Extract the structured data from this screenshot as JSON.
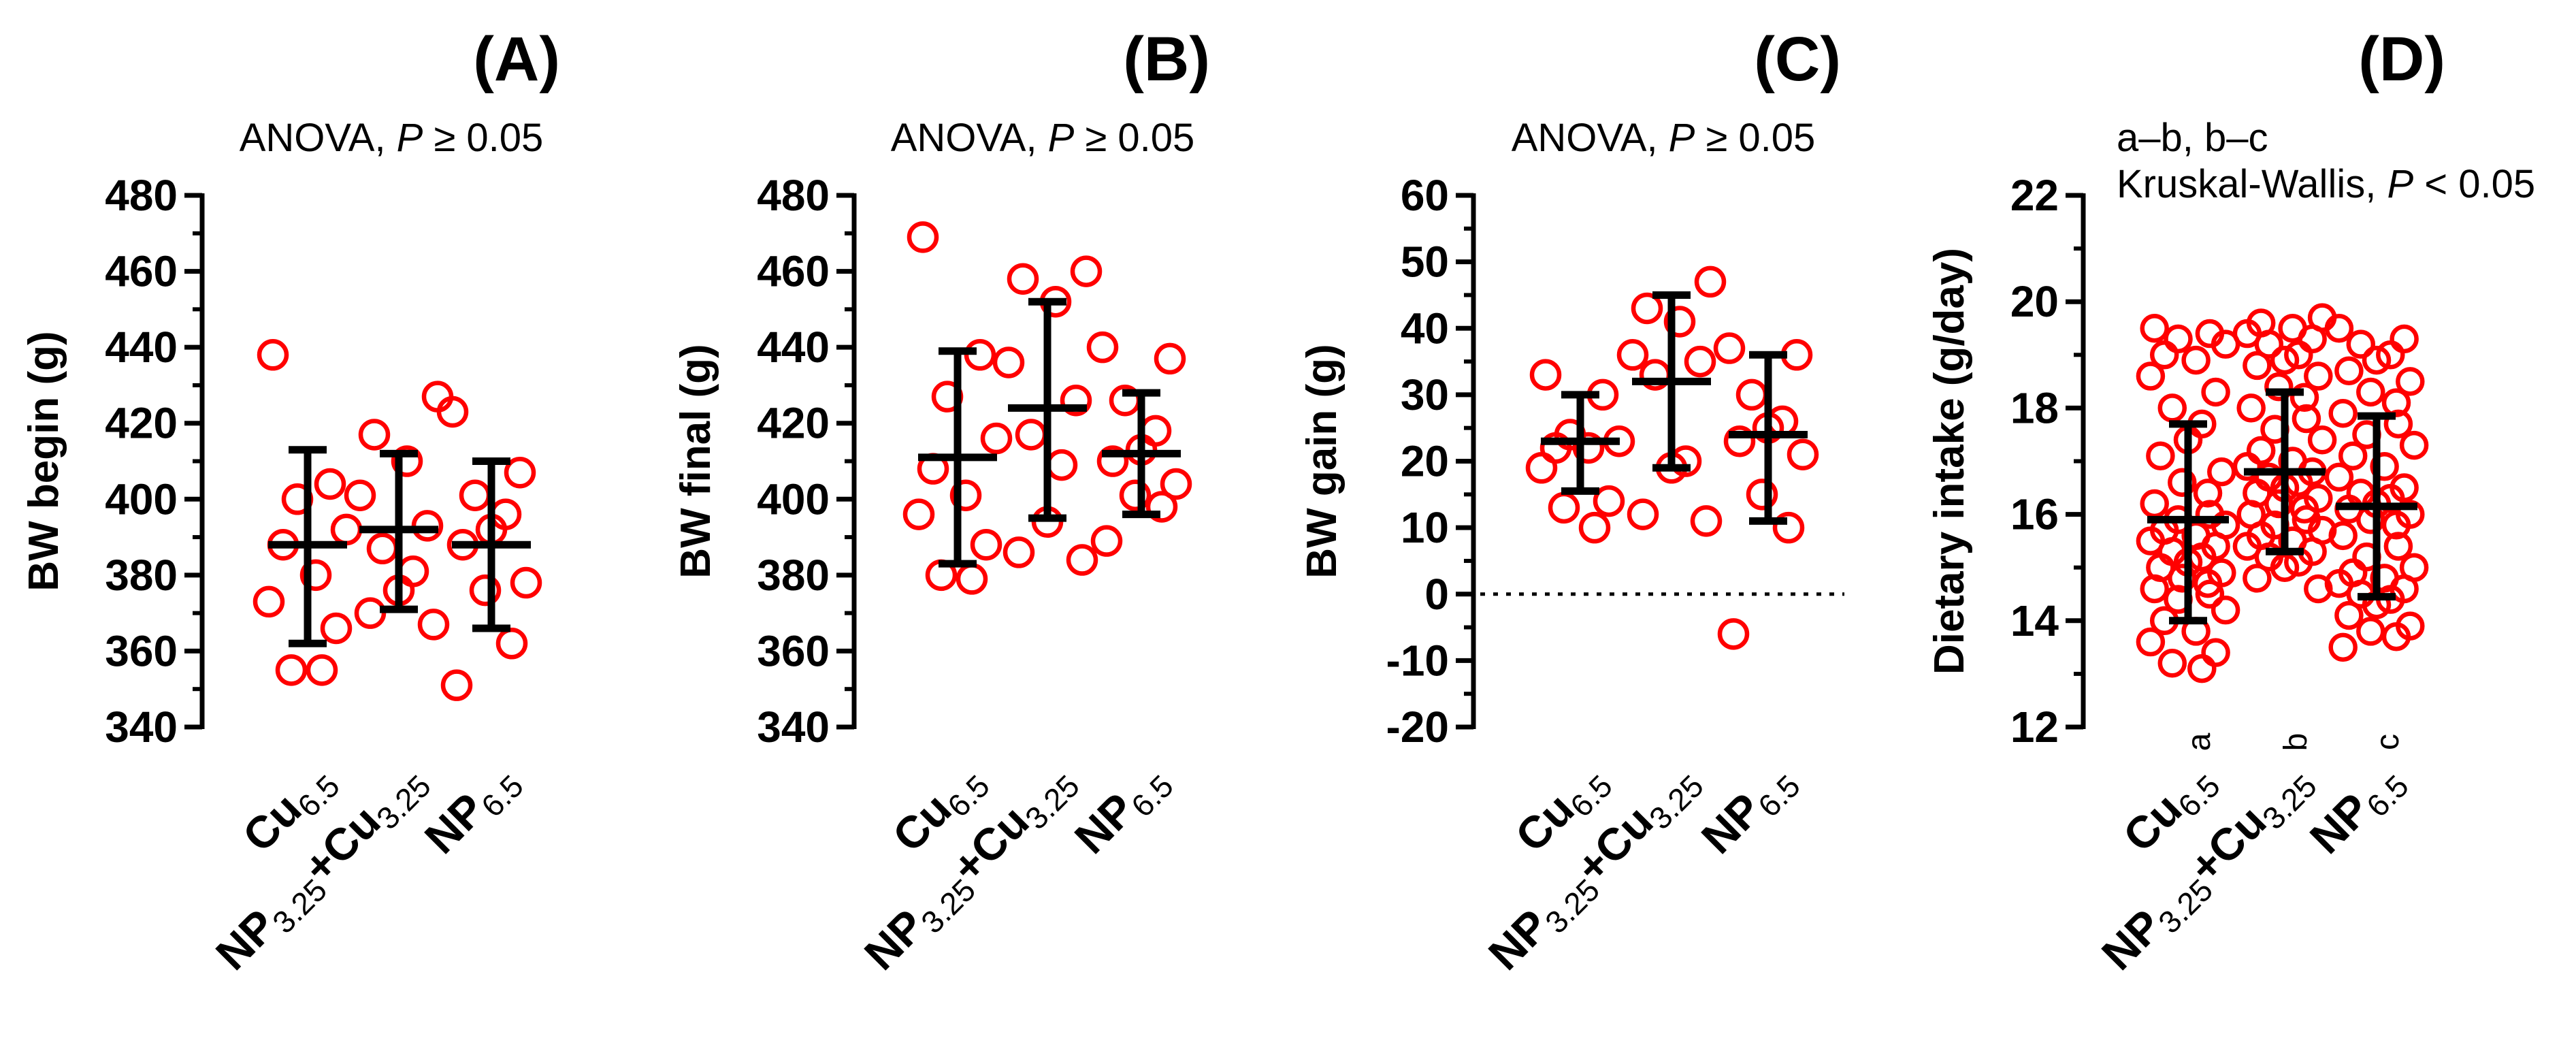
{
  "colors": {
    "points": "#ff0000",
    "axes": "#000000"
  },
  "chart_data": [
    {
      "type": "scatter",
      "panel": "(A)",
      "title": "(A)",
      "stat_parts": [
        "ANOVA, ",
        "P",
        " ≥ 0.05"
      ],
      "ylabel": "BW begin (g)",
      "ylim": [
        340,
        480
      ],
      "yticks": [
        340,
        360,
        380,
        400,
        420,
        440,
        460,
        480
      ],
      "yminor": [
        350,
        370,
        390,
        410,
        430,
        450,
        470
      ],
      "categories": [
        {
          "main": "Cu",
          "sub": "6.5"
        },
        {
          "main": "NP",
          "sub": "3.25",
          "main2": "+Cu",
          "sub2": "3.25"
        },
        {
          "main": "NP",
          "sub": "6.5"
        }
      ],
      "series": [
        {
          "name": "Cu6.5",
          "mean": 388,
          "error_low": 362,
          "error_high": 413,
          "points": [
            438,
            404,
            400,
            392,
            388,
            380,
            373,
            366,
            355,
            355
          ]
        },
        {
          "name": "NP3.25+Cu3.25",
          "mean": 392,
          "error_low": 371,
          "error_high": 412,
          "points": [
            427,
            417,
            410,
            401,
            393,
            387,
            381,
            376,
            370,
            367
          ]
        },
        {
          "name": "NP6.5",
          "mean": 388,
          "error_low": 366,
          "error_high": 410,
          "points": [
            423,
            407,
            401,
            396,
            392,
            388,
            378,
            376,
            362,
            351
          ]
        }
      ]
    },
    {
      "type": "scatter",
      "panel": "(B)",
      "title": "(B)",
      "stat_parts": [
        "ANOVA, ",
        "P",
        " ≥ 0.05"
      ],
      "ylabel": "BW final (g)",
      "ylim": [
        340,
        480
      ],
      "yticks": [
        340,
        360,
        380,
        400,
        420,
        440,
        460,
        480
      ],
      "yminor": [
        350,
        370,
        390,
        410,
        430,
        450,
        470
      ],
      "categories": [
        {
          "main": "Cu",
          "sub": "6.5"
        },
        {
          "main": "NP",
          "sub": "3.25",
          "main2": "+Cu",
          "sub2": "3.25"
        },
        {
          "main": "NP",
          "sub": "6.5"
        }
      ],
      "series": [
        {
          "name": "Cu6.5",
          "mean": 411,
          "error_low": 383,
          "error_high": 439,
          "points": [
            469,
            438,
            427,
            416,
            408,
            401,
            396,
            388,
            380,
            379
          ]
        },
        {
          "name": "NP3.25+Cu3.25",
          "mean": 424,
          "error_low": 395,
          "error_high": 452,
          "points": [
            460,
            458,
            452,
            436,
            426,
            417,
            409,
            394,
            386,
            384
          ]
        },
        {
          "name": "NP6.5",
          "mean": 412,
          "error_low": 396,
          "error_high": 428,
          "points": [
            440,
            437,
            426,
            418,
            413,
            410,
            404,
            401,
            398,
            389
          ]
        }
      ]
    },
    {
      "type": "scatter",
      "panel": "(C)",
      "title": "(C)",
      "stat_parts": [
        "ANOVA, ",
        "P",
        " ≥ 0.05"
      ],
      "ylabel": "BW gain (g)",
      "ylim": [
        -20,
        60
      ],
      "yticks": [
        -20,
        -10,
        0,
        10,
        20,
        30,
        40,
        50,
        60
      ],
      "yminor": [
        -15,
        -5,
        5,
        15,
        25,
        35,
        45,
        55
      ],
      "reference_line": 0,
      "categories": [
        {
          "main": "Cu",
          "sub": "6.5"
        },
        {
          "main": "NP",
          "sub": "3.25",
          "main2": "+Cu",
          "sub2": "3.25"
        },
        {
          "main": "NP",
          "sub": "6.5"
        }
      ],
      "series": [
        {
          "name": "Cu6.5",
          "mean": 23,
          "error_low": 15.5,
          "error_high": 30,
          "points": [
            33,
            30,
            24,
            23,
            22,
            22,
            19,
            14,
            13,
            10
          ]
        },
        {
          "name": "NP3.25+Cu3.25",
          "mean": 32,
          "error_low": 19,
          "error_high": 45,
          "points": [
            47,
            43,
            41,
            36,
            35,
            33,
            20,
            19,
            12,
            11
          ]
        },
        {
          "name": "NP6.5",
          "mean": 24,
          "error_low": 11,
          "error_high": 36,
          "points": [
            37,
            36,
            30,
            26,
            25,
            23,
            21,
            15,
            10,
            -6
          ]
        }
      ]
    },
    {
      "type": "scatter",
      "panel": "(D)",
      "title": "(D)",
      "stat_line1": "a–b, b–c",
      "stat_parts": [
        "Kruskal-Wallis, ",
        "P",
        " < 0.05"
      ],
      "ylabel": "Dietary  intake (g/day)",
      "ylim": [
        12,
        22
      ],
      "yticks": [
        12,
        14,
        16,
        18,
        20,
        22
      ],
      "yminor": [
        13,
        15,
        17,
        19,
        21
      ],
      "categories": [
        {
          "main": "Cu",
          "sub": "6.5",
          "letter": "a"
        },
        {
          "main": "NP",
          "sub": "3.25",
          "main2": "+Cu",
          "sub2": "3.25",
          "letter": "b"
        },
        {
          "main": "NP",
          "sub": "6.5",
          "letter": "c"
        }
      ],
      "series": [
        {
          "name": "Cu6.5",
          "mean": 15.9,
          "error_low": 14.0,
          "error_high": 17.7,
          "points": [
            19.5,
            19.4,
            19.3,
            19.2,
            19.0,
            18.9,
            18.6,
            18.3,
            18.0,
            17.7,
            17.4,
            17.1,
            16.8,
            16.6,
            16.4,
            16.2,
            16.0,
            15.9,
            15.8,
            15.7,
            15.6,
            15.5,
            15.4,
            15.3,
            15.2,
            15.1,
            15.0,
            14.9,
            14.8,
            14.7,
            14.6,
            14.5,
            14.4,
            14.2,
            14.0,
            13.8,
            13.6,
            13.4,
            13.2,
            13.1
          ]
        },
        {
          "name": "NP3.25+Cu3.25",
          "mean": 16.8,
          "error_low": 15.3,
          "error_high": 18.3,
          "points": [
            19.7,
            19.6,
            19.5,
            19.4,
            19.3,
            19.2,
            19.0,
            18.9,
            18.8,
            18.6,
            18.4,
            18.2,
            18.0,
            17.8,
            17.6,
            17.4,
            17.2,
            17.0,
            16.9,
            16.8,
            16.7,
            16.6,
            16.5,
            16.4,
            16.3,
            16.2,
            16.1,
            16.0,
            15.9,
            15.8,
            15.7,
            15.6,
            15.5,
            15.4,
            15.3,
            15.2,
            15.1,
            15.0,
            14.8,
            14.6
          ]
        },
        {
          "name": "NP6.5",
          "mean": 16.15,
          "error_low": 14.45,
          "error_high": 17.85,
          "points": [
            19.5,
            19.3,
            19.2,
            19.0,
            18.9,
            18.7,
            18.5,
            18.3,
            18.1,
            17.9,
            17.7,
            17.5,
            17.3,
            17.1,
            16.9,
            16.7,
            16.5,
            16.4,
            16.3,
            16.2,
            16.1,
            16.0,
            15.9,
            15.8,
            15.6,
            15.4,
            15.2,
            15.0,
            14.9,
            14.8,
            14.7,
            14.6,
            14.5,
            14.4,
            14.3,
            14.1,
            13.9,
            13.8,
            13.7,
            13.5
          ]
        }
      ]
    }
  ]
}
